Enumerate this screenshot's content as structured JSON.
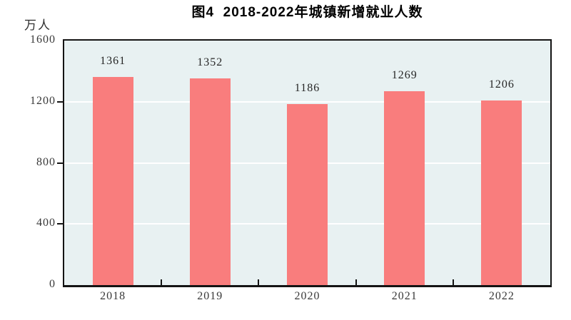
{
  "chart_data": {
    "type": "bar",
    "title": "图4  2018-2022年城镇新增就业人数",
    "unit_label": "万人",
    "categories": [
      "2018",
      "2019",
      "2020",
      "2021",
      "2022"
    ],
    "values": [
      1361,
      1352,
      1186,
      1269,
      1206
    ],
    "value_labels": [
      "1361",
      "1352",
      "1186",
      "1269",
      "1206"
    ],
    "xlabel": "",
    "ylabel": "万人",
    "ylim": [
      0,
      1600
    ],
    "yticks": [
      0,
      400,
      800,
      1200,
      1600
    ],
    "grid": true,
    "legend": false,
    "colors": {
      "bar": "#f97d7d",
      "plot_bg": "#e8f1f2",
      "grid": "#ffffff",
      "axis": "#141414",
      "title_text": "#000000",
      "tick_text": "#383838"
    }
  }
}
